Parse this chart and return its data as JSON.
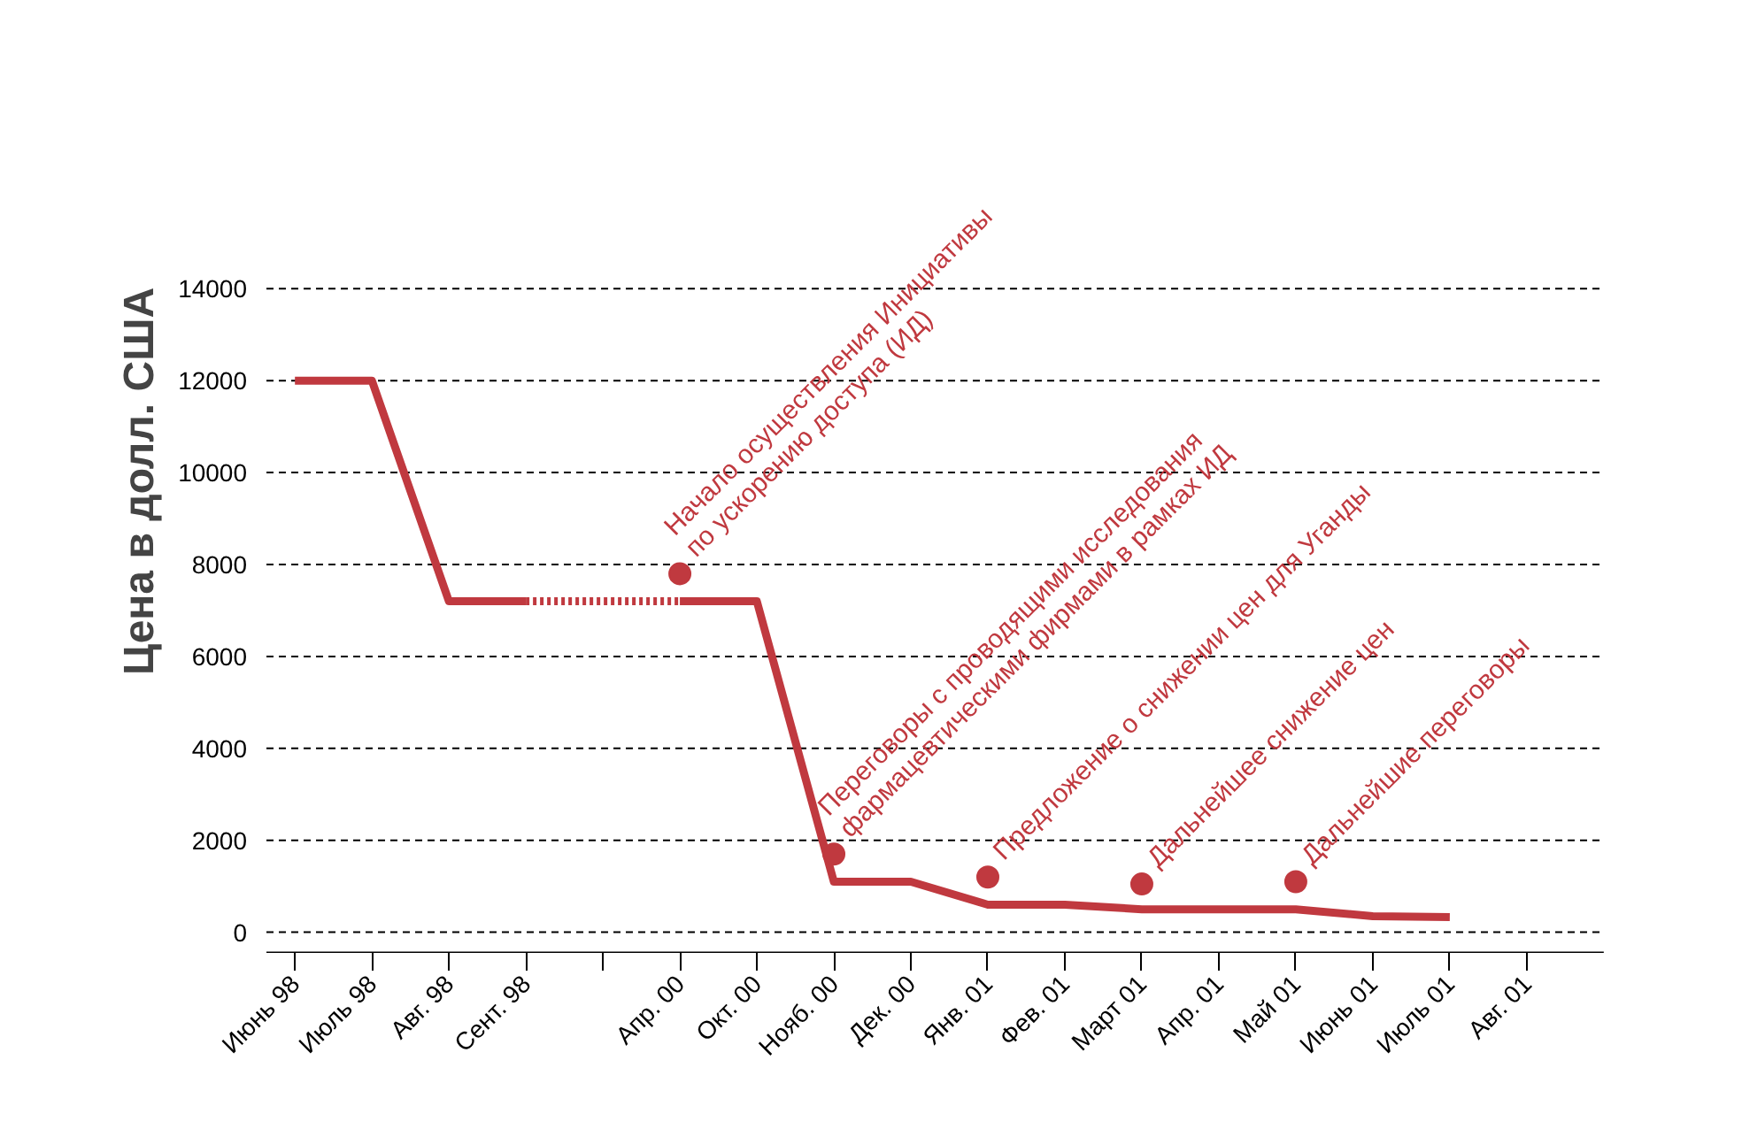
{
  "chart_data": {
    "type": "line",
    "ylabel": "Цена в долл. США",
    "categories": [
      "Июнь 98",
      "Июль 98",
      "Авг. 98",
      "Сент. 98",
      null,
      "Апр. 00",
      "Окт. 00",
      "Нояб. 00",
      "Дек. 00",
      "Янв. 01",
      "Фев. 01",
      "Март 01",
      "Апр. 01",
      "Май 01",
      "Июнь 01",
      "Июль 01",
      "Авг. 01"
    ],
    "ylim": [
      -450,
      14000
    ],
    "yticks": [
      0,
      2000,
      4000,
      6000,
      8000,
      10000,
      12000,
      14000
    ],
    "grid": "y",
    "line_style": "solid",
    "marker": "none",
    "series": [
      {
        "color": "#c0393f",
        "values": [
          12000,
          12000,
          7200,
          7200,
          null,
          null,
          null,
          null,
          null,
          null,
          null,
          null,
          null,
          null,
          null,
          null,
          null
        ]
      },
      {
        "color": "#c0393f",
        "line_style": "dotted",
        "values": [
          null,
          null,
          null,
          7200,
          7200,
          7200,
          null,
          null,
          null,
          null,
          null,
          null,
          null,
          null,
          null,
          null,
          null
        ]
      },
      {
        "color": "#c0393f",
        "values": [
          null,
          null,
          null,
          null,
          null,
          7200,
          7200,
          1100,
          1100,
          600,
          600,
          500,
          500,
          500,
          350,
          330,
          null
        ]
      },
      {
        "type": "scatter",
        "color": "#c0393f",
        "marker": "circle",
        "values": [
          null,
          null,
          null,
          null,
          null,
          7800,
          null,
          1700,
          null,
          1200,
          null,
          1050,
          null,
          1100,
          null,
          null,
          null
        ]
      }
    ],
    "annotations": [
      {
        "text": "Начало осуществления Инициативы\nпо ускорению доступа (ИД)",
        "x": "Апр. 00",
        "y": 7800
      },
      {
        "text": "Переговоры с проводящими исследования\nфармацевтическими фирмами в рамках ИД",
        "x": "Нояб. 00",
        "y": 1700
      },
      {
        "text": "Предложение о снижении цен для Уганды",
        "x": "Янв. 01",
        "y": 1200
      },
      {
        "text": "Дальнейшее снижение цен",
        "x": "Март 01",
        "y": 1050
      },
      {
        "text": "Дальнейшие переговоры",
        "x": "Май 01",
        "y": 1100
      }
    ]
  }
}
